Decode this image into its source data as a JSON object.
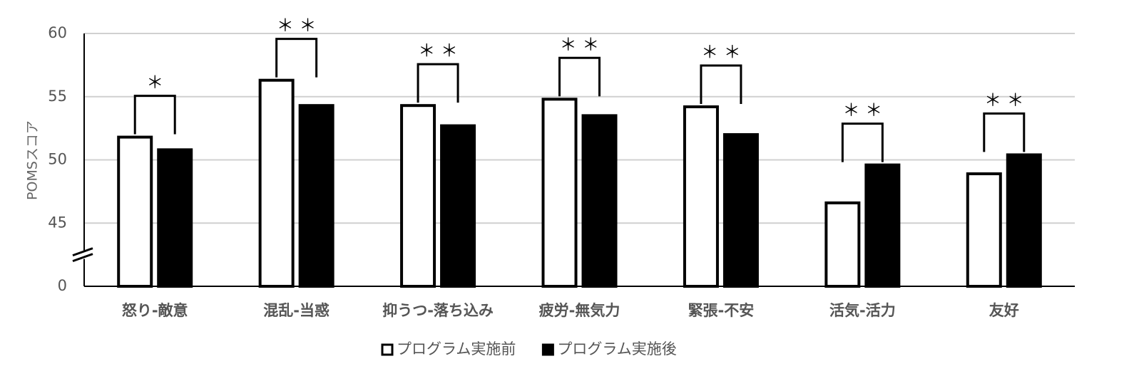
{
  "chart_data": {
    "type": "bar",
    "y_label": "POMSスコア",
    "categories": [
      "怒り-敵意",
      "混乱-当惑",
      "抑うつ-落ち込み",
      "疲労-無気力",
      "緊張-不安",
      "活気-活力",
      "友好"
    ],
    "series": [
      {
        "name": "プログラム実施前",
        "color": "#ffffff",
        "edgecolor": "#000000",
        "values": [
          51.8,
          56.3,
          54.3,
          54.8,
          54.2,
          46.6,
          48.9
        ]
      },
      {
        "name": "プログラム実施後",
        "color": "#000000",
        "edgecolor": "#000000",
        "values": [
          50.8,
          54.3,
          52.7,
          53.5,
          52.0,
          49.6,
          50.4
        ]
      }
    ],
    "significance": [
      "＊",
      "＊ ＊",
      "＊ ＊",
      "＊ ＊",
      "＊ ＊",
      "＊ ＊",
      "＊ ＊"
    ],
    "ylim": [
      0,
      60
    ],
    "yticks": [
      0,
      45,
      50,
      55,
      60
    ],
    "axis_break": [
      0,
      45
    ],
    "grid": true,
    "legend": "bottom"
  }
}
